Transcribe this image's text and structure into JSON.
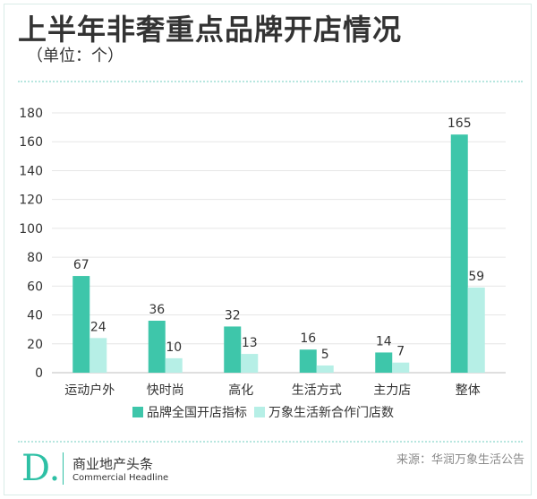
{
  "header": {
    "title": "上半年非奢重点品牌开店情况",
    "subtitle": "（单位：个）"
  },
  "footer": {
    "source": "来源：华润万象生活公告",
    "logo_mark": "D.",
    "logo_cn": "商业地产头条",
    "logo_en": "Commercial Headline"
  },
  "colors": {
    "series1": "#3ec6aa",
    "series2": "#b6efe6",
    "grid": "#e6e6e6",
    "accent": "#2ec0a5"
  },
  "chart_data": {
    "type": "bar",
    "categories": [
      "运动户外",
      "快时尚",
      "高化",
      "生活方式",
      "主力店",
      "整体"
    ],
    "series": [
      {
        "name": "品牌全国开店指标",
        "values": [
          67,
          36,
          32,
          16,
          14,
          165
        ]
      },
      {
        "name": "万象生活新合作门店数",
        "values": [
          24,
          10,
          13,
          5,
          7,
          59
        ]
      }
    ],
    "ylim": [
      0,
      180
    ],
    "yticks": [
      0,
      20,
      40,
      60,
      80,
      100,
      120,
      140,
      160,
      180
    ],
    "grid": true,
    "legend": "bottom",
    "data_labels": true
  }
}
